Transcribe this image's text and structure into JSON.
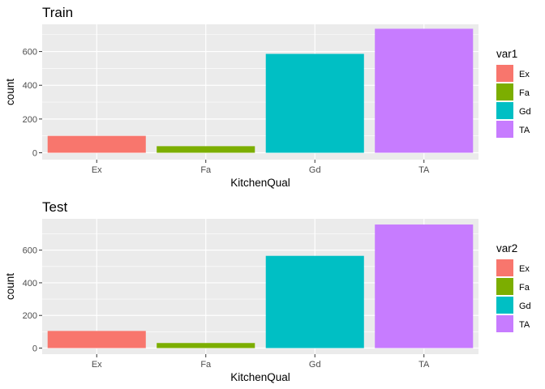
{
  "chart_data": [
    {
      "type": "bar",
      "title": "Train",
      "xlabel": "KitchenQual",
      "ylabel": "count",
      "categories": [
        "Ex",
        "Fa",
        "Gd",
        "TA"
      ],
      "values": [
        100,
        39,
        586,
        735
      ],
      "ylim": [
        0,
        760
      ],
      "yticks": [
        0,
        200,
        400,
        600
      ],
      "legend": {
        "title": "var1",
        "entries": [
          "Ex",
          "Fa",
          "Gd",
          "TA"
        ],
        "position": "right"
      },
      "colors": [
        "#F8766D",
        "#7CAE00",
        "#00BFC4",
        "#C77CFF"
      ],
      "grid": true
    },
    {
      "type": "bar",
      "title": "Test",
      "xlabel": "KitchenQual",
      "ylabel": "count",
      "categories": [
        "Ex",
        "Fa",
        "Gd",
        "TA"
      ],
      "values": [
        105,
        31,
        565,
        757
      ],
      "ylim": [
        0,
        780
      ],
      "yticks": [
        0,
        200,
        400,
        600
      ],
      "legend": {
        "title": "var2",
        "entries": [
          "Ex",
          "Fa",
          "Gd",
          "TA"
        ],
        "position": "right"
      },
      "colors": [
        "#F8766D",
        "#7CAE00",
        "#00BFC4",
        "#C77CFF"
      ],
      "grid": true
    }
  ]
}
